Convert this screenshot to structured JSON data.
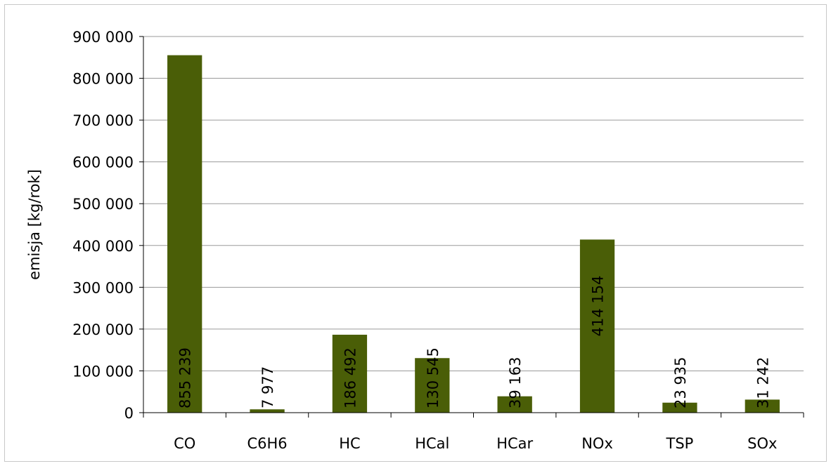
{
  "chart_data": {
    "type": "bar",
    "categories": [
      "CO",
      "C6H6",
      "HC",
      "HCal",
      "HCar",
      "NOx",
      "TSP",
      "SOx"
    ],
    "values": [
      855239,
      7977,
      186492,
      130545,
      39163,
      414154,
      23935,
      31242
    ],
    "value_labels": [
      "855 239",
      "7 977",
      "186 492",
      "130 545",
      "39 163",
      "414 154",
      "23 935",
      "31 242"
    ],
    "ylabel": "emisja [kg/rok]",
    "xlabel": "",
    "ylim": [
      0,
      900000
    ],
    "yticks": [
      0,
      100000,
      200000,
      300000,
      400000,
      500000,
      600000,
      700000,
      800000,
      900000
    ],
    "ytick_labels": [
      "0",
      "100 000",
      "200 000",
      "300 000",
      "400 000",
      "500 000",
      "600 000",
      "700 000",
      "800 000",
      "900 000"
    ],
    "grid": true,
    "bar_color": "#4a5e07",
    "legend": "none"
  }
}
